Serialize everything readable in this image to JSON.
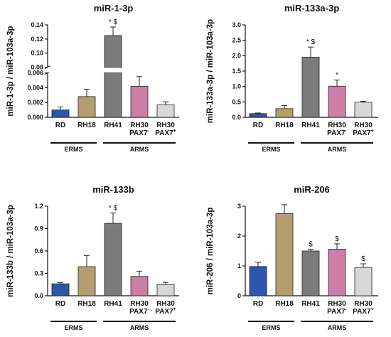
{
  "chart_data": [
    {
      "type": "bar",
      "title": "miR-1-3p",
      "ylabel": "miR-1-3p / miR-103a-3p",
      "categories": [
        "RD",
        "RH18",
        "RH41",
        "RH30 PAX7-",
        "RH30 PAX7+"
      ],
      "category_labels": [
        {
          "line1": "RD"
        },
        {
          "line1": "RH18"
        },
        {
          "line1": "RH41"
        },
        {
          "line1": "RH30",
          "line2": "PAX7",
          "sup": "-"
        },
        {
          "line1": "RH30",
          "line2": "PAX7",
          "sup": "+"
        }
      ],
      "values": [
        0.001,
        0.0028,
        0.125,
        0.0042,
        0.0017
      ],
      "errors": [
        0.0004,
        0.001,
        0.012,
        0.0013,
        0.0004
      ],
      "annotations": [
        "",
        "",
        "* $",
        "",
        ""
      ],
      "groups": [
        {
          "label": "ERMS",
          "from": 0,
          "to": 1
        },
        {
          "label": "ARMS",
          "from": 2,
          "to": 4
        }
      ],
      "broken_axis": true,
      "lower_ticks": [
        "0.000",
        "0.002",
        "0.004",
        "0.006"
      ],
      "upper_ticks": [
        "0.08",
        "0.10",
        "0.12",
        "0.14"
      ],
      "lower_range": [
        0,
        0.006
      ],
      "upper_range": [
        0.08,
        0.14
      ],
      "break_fraction": 0.48
    },
    {
      "type": "bar",
      "title": "miR-133a-3p",
      "ylabel": "miR-133a-3p / miR-103a-3p",
      "categories": [
        "RD",
        "RH18",
        "RH41",
        "RH30 PAX7-",
        "RH30 PAX7+"
      ],
      "category_labels": [
        {
          "line1": "RD"
        },
        {
          "line1": "RH18"
        },
        {
          "line1": "RH41"
        },
        {
          "line1": "RH30",
          "line2": "PAX7",
          "sup": "-"
        },
        {
          "line1": "RH30",
          "line2": "PAX7",
          "sup": "+"
        }
      ],
      "values": [
        0.12,
        0.28,
        1.95,
        1.01,
        0.49
      ],
      "errors": [
        0.02,
        0.1,
        0.33,
        0.2,
        0.03
      ],
      "annotations": [
        "",
        "",
        "* $",
        "*",
        ""
      ],
      "groups": [
        {
          "label": "ERMS",
          "from": 0,
          "to": 1
        },
        {
          "label": "ARMS",
          "from": 2,
          "to": 4
        }
      ],
      "ylim": [
        0,
        3.0
      ],
      "ticks": [
        "0.0",
        "0.5",
        "1.0",
        "1.5",
        "2.0",
        "2.5",
        "3.0"
      ]
    },
    {
      "type": "bar",
      "title": "miR-133b",
      "ylabel": "miR-133b / miR-103a-3p",
      "categories": [
        "RD",
        "RH18",
        "RH41",
        "RH30 PAX7-",
        "RH30 PAX7+"
      ],
      "category_labels": [
        {
          "line1": "RD"
        },
        {
          "line1": "RH18"
        },
        {
          "line1": "RH41"
        },
        {
          "line1": "RH30",
          "line2": "PAX7",
          "sup": "-"
        },
        {
          "line1": "RH30",
          "line2": "PAX7",
          "sup": "+"
        }
      ],
      "values": [
        0.16,
        0.39,
        0.97,
        0.26,
        0.15
      ],
      "errors": [
        0.015,
        0.15,
        0.14,
        0.07,
        0.03
      ],
      "annotations": [
        "",
        "",
        "* $",
        "",
        ""
      ],
      "groups": [
        {
          "label": "ERMS",
          "from": 0,
          "to": 1
        },
        {
          "label": "ARMS",
          "from": 2,
          "to": 4
        }
      ],
      "ylim": [
        0,
        1.2
      ],
      "ticks": [
        "0.0",
        "0.3",
        "0.6",
        "0.9",
        "1.2"
      ]
    },
    {
      "type": "bar",
      "title": "miR-206",
      "ylabel": "miR-206 / miR-103a-3p",
      "categories": [
        "RD",
        "RH18",
        "RH41",
        "RH30 PAX7-",
        "RH30 PAX7+"
      ],
      "category_labels": [
        {
          "line1": "RD"
        },
        {
          "line1": "RH18"
        },
        {
          "line1": "RH41"
        },
        {
          "line1": "RH30",
          "line2": "PAX7",
          "sup": "-"
        },
        {
          "line1": "RH30",
          "line2": "PAX7",
          "sup": "+"
        }
      ],
      "values": [
        0.98,
        2.75,
        1.5,
        1.56,
        0.95
      ],
      "errors": [
        0.14,
        0.3,
        0.06,
        0.18,
        0.12
      ],
      "annotations": [
        "",
        "",
        "$",
        "$",
        "$"
      ],
      "groups": [
        {
          "label": "ERMS",
          "from": 0,
          "to": 1
        },
        {
          "label": "ARMS",
          "from": 2,
          "to": 4
        }
      ],
      "ylim": [
        0,
        3
      ],
      "ticks": [
        "0",
        "1",
        "2",
        "3"
      ]
    }
  ],
  "colors": {
    "bars": [
      "#2f56ad",
      "#b59e6e",
      "#7b7b7b",
      "#cb7fa4",
      "#d8d8d8"
    ],
    "axis": "#111111"
  }
}
